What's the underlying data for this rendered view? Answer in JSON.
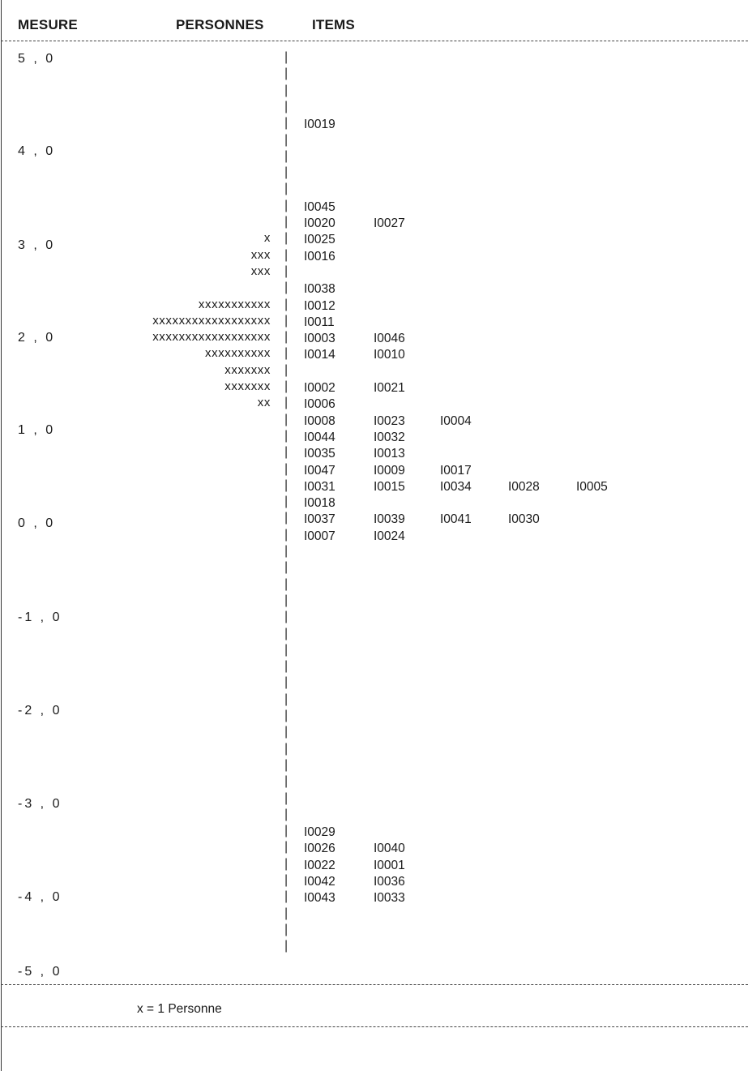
{
  "headers": {
    "measure": "MESURE",
    "persons": "PERSONNES",
    "items": "ITEMS"
  },
  "legend": "x = 1 Personne",
  "chart_data": {
    "type": "table",
    "description_kind": "person-item map (Wright map)",
    "ylim": [
      -5.0,
      5.0
    ],
    "y_ticks": [
      "5 , 0",
      "4 , 0",
      "3 , 0",
      "2 , 0",
      "1 , 0",
      "0 , 0",
      "-1 , 0",
      "-2 , 0",
      "-3 , 0",
      "-4 , 0",
      "-5 , 0"
    ],
    "rows": [
      {
        "persons": "",
        "items": []
      },
      {
        "persons": "",
        "items": []
      },
      {
        "persons": "",
        "items": []
      },
      {
        "persons": "",
        "items": []
      },
      {
        "persons": "",
        "items": [
          "I0019"
        ]
      },
      {
        "persons": "",
        "items": []
      },
      {
        "persons": "",
        "items": []
      },
      {
        "persons": "",
        "items": []
      },
      {
        "persons": "",
        "items": []
      },
      {
        "persons": "",
        "items": [
          "I0045"
        ]
      },
      {
        "persons": "",
        "items": [
          "I0020",
          "I0027"
        ]
      },
      {
        "persons": "x",
        "items": [
          "I0025"
        ]
      },
      {
        "persons": "xxx",
        "items": [
          "I0016"
        ]
      },
      {
        "persons": "xxx",
        "items": []
      },
      {
        "persons": "",
        "items": [
          "I0038"
        ]
      },
      {
        "persons": "xxxxxxxxxxx",
        "items": [
          "I0012"
        ]
      },
      {
        "persons": "xxxxxxxxxxxxxxxxxx",
        "items": [
          "I0011"
        ]
      },
      {
        "persons": "xxxxxxxxxxxxxxxxxx",
        "items": [
          "I0003",
          "I0046"
        ]
      },
      {
        "persons": "xxxxxxxxxx",
        "items": [
          "I0014",
          "I0010"
        ]
      },
      {
        "persons": "xxxxxxx",
        "items": []
      },
      {
        "persons": "xxxxxxx",
        "items": [
          "I0002",
          "I0021"
        ]
      },
      {
        "persons": "xx",
        "items": [
          "I0006"
        ]
      },
      {
        "persons": "",
        "items": [
          "I0008",
          "I0023",
          "I0004"
        ]
      },
      {
        "persons": "",
        "items": [
          "I0044",
          "I0032"
        ]
      },
      {
        "persons": "",
        "items": [
          "I0035",
          "I0013"
        ]
      },
      {
        "persons": "",
        "items": [
          "I0047",
          "I0009",
          "I0017"
        ]
      },
      {
        "persons": "",
        "items": [
          "I0031",
          "I0015",
          "I0034",
          "I0028",
          "I0005"
        ]
      },
      {
        "persons": "",
        "items": [
          "I0018"
        ]
      },
      {
        "persons": "",
        "items": [
          "I0037",
          "I0039",
          "I0041",
          "I0030"
        ]
      },
      {
        "persons": "",
        "items": [
          "I0007",
          "I0024"
        ]
      },
      {
        "persons": "",
        "items": []
      },
      {
        "persons": "",
        "items": []
      },
      {
        "persons": "",
        "items": []
      },
      {
        "persons": "",
        "items": []
      },
      {
        "persons": "",
        "items": []
      },
      {
        "persons": "",
        "items": []
      },
      {
        "persons": "",
        "items": []
      },
      {
        "persons": "",
        "items": []
      },
      {
        "persons": "",
        "items": []
      },
      {
        "persons": "",
        "items": []
      },
      {
        "persons": "",
        "items": []
      },
      {
        "persons": "",
        "items": []
      },
      {
        "persons": "",
        "items": []
      },
      {
        "persons": "",
        "items": []
      },
      {
        "persons": "",
        "items": []
      },
      {
        "persons": "",
        "items": []
      },
      {
        "persons": "",
        "items": []
      },
      {
        "persons": "",
        "items": [
          "I0029"
        ]
      },
      {
        "persons": "",
        "items": [
          "I0026",
          "I0040"
        ]
      },
      {
        "persons": "",
        "items": [
          "I0022",
          "I0001"
        ]
      },
      {
        "persons": "",
        "items": [
          "I0042",
          "I0036"
        ]
      },
      {
        "persons": "",
        "items": [
          "I0043",
          "I0033"
        ]
      },
      {
        "persons": "",
        "items": []
      },
      {
        "persons": "",
        "items": []
      },
      {
        "persons": "",
        "items": []
      }
    ]
  }
}
